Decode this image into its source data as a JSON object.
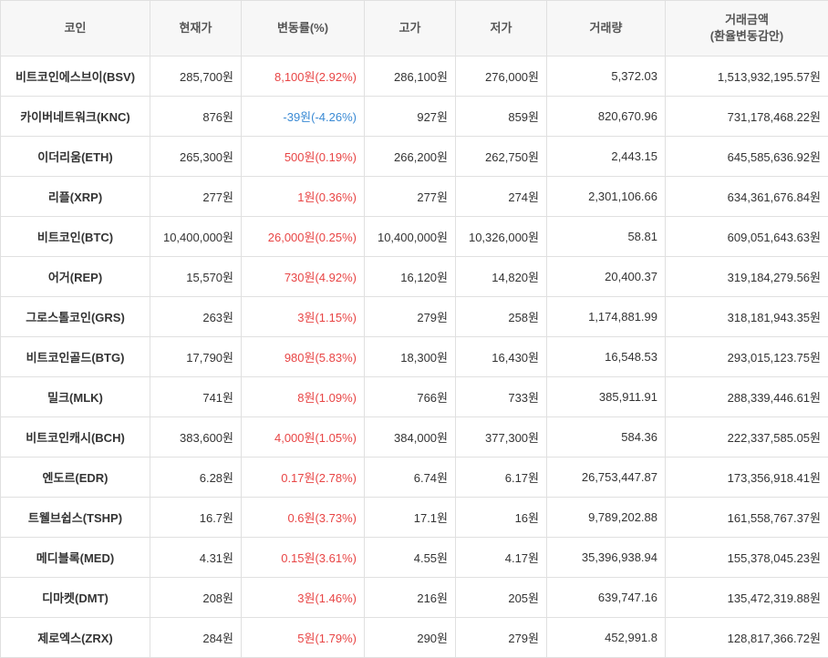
{
  "columns": [
    {
      "key": "coin",
      "label": "코인",
      "width_class": "c0"
    },
    {
      "key": "price",
      "label": "현재가",
      "width_class": "c1"
    },
    {
      "key": "change",
      "label": "변동률(%)",
      "width_class": "c2"
    },
    {
      "key": "high",
      "label": "고가",
      "width_class": "c3"
    },
    {
      "key": "low",
      "label": "저가",
      "width_class": "c4"
    },
    {
      "key": "volume",
      "label": "거래량",
      "width_class": "c5"
    },
    {
      "key": "amount",
      "label": "거래금액\n(환율변동감안)",
      "width_class": "c6"
    }
  ],
  "rows": [
    {
      "coin": "비트코인에스브이(BSV)",
      "price": "285,700원",
      "change": "8,100원(2.92%)",
      "dir": "pos",
      "high": "286,100원",
      "low": "276,000원",
      "volume": "5,372.03",
      "amount": "1,513,932,195.57원"
    },
    {
      "coin": "카이버네트워크(KNC)",
      "price": "876원",
      "change": "-39원(-4.26%)",
      "dir": "neg",
      "high": "927원",
      "low": "859원",
      "volume": "820,670.96",
      "amount": "731,178,468.22원"
    },
    {
      "coin": "이더리움(ETH)",
      "price": "265,300원",
      "change": "500원(0.19%)",
      "dir": "pos",
      "high": "266,200원",
      "low": "262,750원",
      "volume": "2,443.15",
      "amount": "645,585,636.92원"
    },
    {
      "coin": "리플(XRP)",
      "price": "277원",
      "change": "1원(0.36%)",
      "dir": "pos",
      "high": "277원",
      "low": "274원",
      "volume": "2,301,106.66",
      "amount": "634,361,676.84원"
    },
    {
      "coin": "비트코인(BTC)",
      "price": "10,400,000원",
      "change": "26,000원(0.25%)",
      "dir": "pos",
      "high": "10,400,000원",
      "low": "10,326,000원",
      "volume": "58.81",
      "amount": "609,051,643.63원"
    },
    {
      "coin": "어거(REP)",
      "price": "15,570원",
      "change": "730원(4.92%)",
      "dir": "pos",
      "high": "16,120원",
      "low": "14,820원",
      "volume": "20,400.37",
      "amount": "319,184,279.56원"
    },
    {
      "coin": "그로스톨코인(GRS)",
      "price": "263원",
      "change": "3원(1.15%)",
      "dir": "pos",
      "high": "279원",
      "low": "258원",
      "volume": "1,174,881.99",
      "amount": "318,181,943.35원"
    },
    {
      "coin": "비트코인골드(BTG)",
      "price": "17,790원",
      "change": "980원(5.83%)",
      "dir": "pos",
      "high": "18,300원",
      "low": "16,430원",
      "volume": "16,548.53",
      "amount": "293,015,123.75원"
    },
    {
      "coin": "밀크(MLK)",
      "price": "741원",
      "change": "8원(1.09%)",
      "dir": "pos",
      "high": "766원",
      "low": "733원",
      "volume": "385,911.91",
      "amount": "288,339,446.61원"
    },
    {
      "coin": "비트코인캐시(BCH)",
      "price": "383,600원",
      "change": "4,000원(1.05%)",
      "dir": "pos",
      "high": "384,000원",
      "low": "377,300원",
      "volume": "584.36",
      "amount": "222,337,585.05원"
    },
    {
      "coin": "엔도르(EDR)",
      "price": "6.28원",
      "change": "0.17원(2.78%)",
      "dir": "pos",
      "high": "6.74원",
      "low": "6.17원",
      "volume": "26,753,447.87",
      "amount": "173,356,918.41원"
    },
    {
      "coin": "트웰브쉽스(TSHP)",
      "price": "16.7원",
      "change": "0.6원(3.73%)",
      "dir": "pos",
      "high": "17.1원",
      "low": "16원",
      "volume": "9,789,202.88",
      "amount": "161,558,767.37원"
    },
    {
      "coin": "메디블록(MED)",
      "price": "4.31원",
      "change": "0.15원(3.61%)",
      "dir": "pos",
      "high": "4.55원",
      "low": "4.17원",
      "volume": "35,396,938.94",
      "amount": "155,378,045.23원"
    },
    {
      "coin": "디마켓(DMT)",
      "price": "208원",
      "change": "3원(1.46%)",
      "dir": "pos",
      "high": "216원",
      "low": "205원",
      "volume": "639,747.16",
      "amount": "135,472,319.88원"
    },
    {
      "coin": "제로엑스(ZRX)",
      "price": "284원",
      "change": "5원(1.79%)",
      "dir": "pos",
      "high": "290원",
      "low": "279원",
      "volume": "452,991.8",
      "amount": "128,817,366.72원"
    }
  ],
  "colors": {
    "positive": "#e84545",
    "negative": "#3a8ad4",
    "header_bg": "#f7f7f7",
    "border": "#e0e0e0",
    "text": "#333333"
  }
}
